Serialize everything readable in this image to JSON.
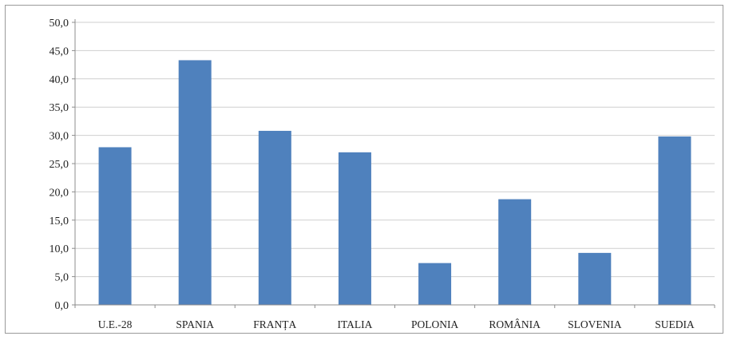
{
  "chart_data": {
    "type": "bar",
    "title": "",
    "xlabel": "",
    "ylabel": "",
    "categories": [
      "U.E.-28",
      "SPANIA",
      "FRANȚA",
      "ITALIA",
      "POLONIA",
      "ROMÂNIA",
      "SLOVENIA",
      "SUEDIA"
    ],
    "values": [
      27.9,
      43.3,
      30.8,
      27.0,
      7.4,
      18.7,
      9.2,
      29.8
    ],
    "ylim": [
      0,
      50
    ],
    "yticks": [
      "0,0",
      "5,0",
      "10,0",
      "15,0",
      "20,0",
      "25,0",
      "30,0",
      "35,0",
      "40,0",
      "45,0",
      "50,0"
    ],
    "grid": true,
    "legend": "none",
    "bar_color": "#4f81bd"
  }
}
